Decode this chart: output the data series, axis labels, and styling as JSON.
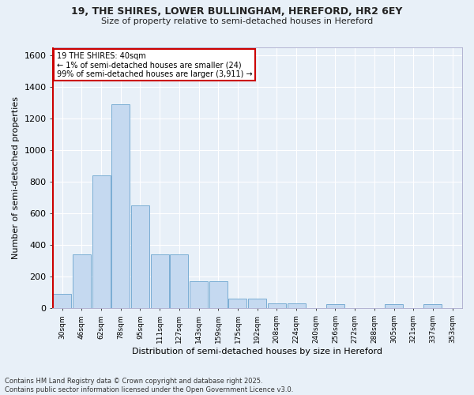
{
  "title_line1": "19, THE SHIRES, LOWER BULLINGHAM, HEREFORD, HR2 6EY",
  "title_line2": "Size of property relative to semi-detached houses in Hereford",
  "xlabel": "Distribution of semi-detached houses by size in Hereford",
  "ylabel": "Number of semi-detached properties",
  "categories": [
    "30sqm",
    "46sqm",
    "62sqm",
    "78sqm",
    "95sqm",
    "111sqm",
    "127sqm",
    "143sqm",
    "159sqm",
    "175sqm",
    "192sqm",
    "208sqm",
    "224sqm",
    "240sqm",
    "256sqm",
    "272sqm",
    "288sqm",
    "305sqm",
    "321sqm",
    "337sqm",
    "353sqm"
  ],
  "values": [
    90,
    340,
    840,
    1290,
    650,
    340,
    340,
    170,
    170,
    60,
    60,
    30,
    30,
    0,
    25,
    0,
    0,
    25,
    0,
    25,
    0
  ],
  "bar_color": "#c5d9f0",
  "bar_edge_color": "#7aadd4",
  "annotation_line1": "19 THE SHIRES: 40sqm",
  "annotation_line2": "← 1% of semi-detached houses are smaller (24)",
  "annotation_line3": "99% of semi-detached houses are larger (3,911) →",
  "annotation_box_color": "#ffffff",
  "annotation_box_edge": "#cc0000",
  "marker_color": "#cc0000",
  "background_color": "#e8f0f8",
  "grid_color": "#ffffff",
  "footnote1": "Contains HM Land Registry data © Crown copyright and database right 2025.",
  "footnote2": "Contains public sector information licensed under the Open Government Licence v3.0.",
  "ylim": [
    0,
    1650
  ],
  "yticks": [
    0,
    200,
    400,
    600,
    800,
    1000,
    1200,
    1400,
    1600
  ]
}
